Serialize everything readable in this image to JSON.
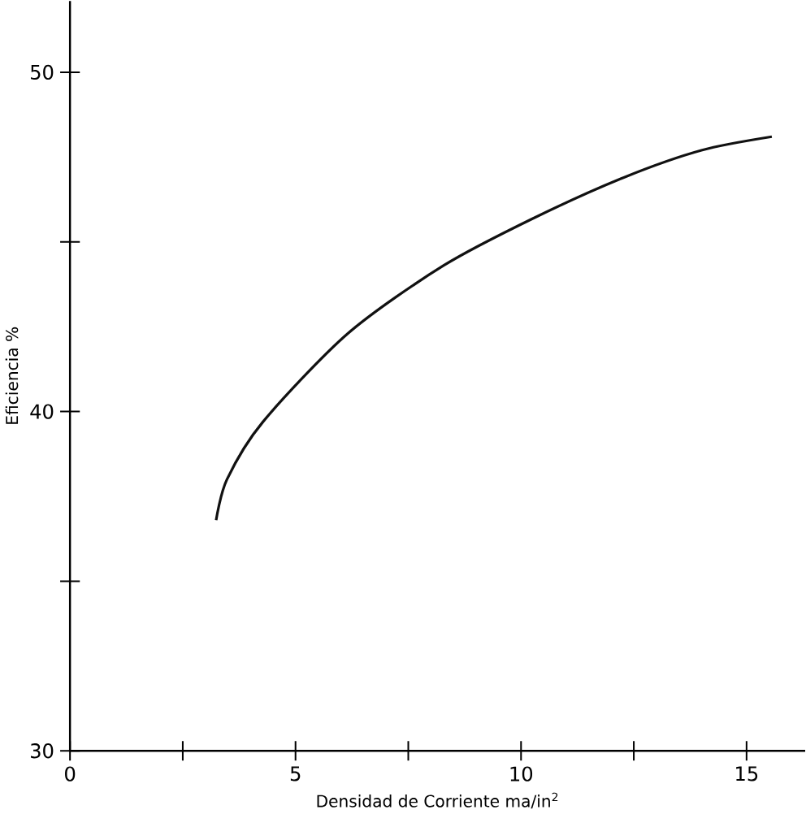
{
  "chart_data": {
    "type": "line",
    "xlabel": "Densidad de Corriente   ma/in$^{2}$",
    "ylabel": "Eficiencia %",
    "x": [
      3.24,
      3.48,
      4.28,
      6.16,
      8.28,
      10.28,
      12.28,
      14.0,
      15.56
    ],
    "values": [
      36.8,
      38.0,
      39.7,
      42.3,
      44.3,
      45.7,
      46.9,
      47.7,
      48.1
    ],
    "color": "#111111",
    "marker": "none",
    "line_style": "solid",
    "grid": false,
    "xlim": [
      0,
      16.3
    ],
    "ylim": [
      30,
      52.1
    ],
    "xticks": [
      0,
      {
        "value": 2.5,
        "label": null
      },
      5,
      {
        "value": 7.5,
        "label": null
      },
      10,
      {
        "value": 12.5,
        "label": null
      },
      15
    ],
    "yticks": [
      30,
      {
        "value": 35,
        "label": null
      },
      40,
      {
        "value": 45,
        "label": null
      },
      50
    ]
  }
}
